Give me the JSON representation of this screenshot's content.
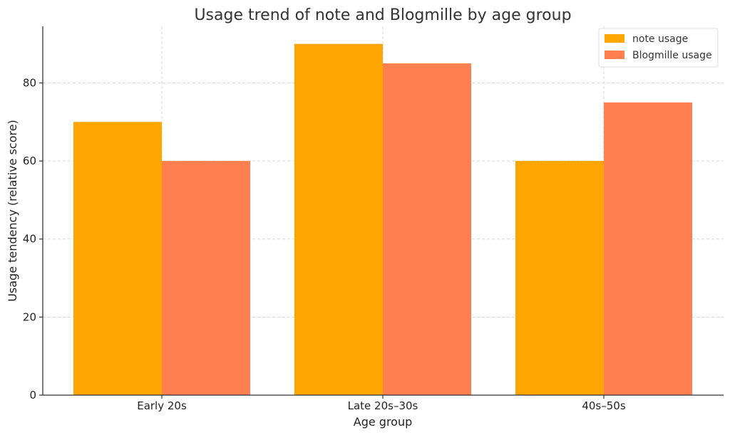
{
  "chart_data": {
    "type": "bar",
    "title": "Usage trend of note and Blogmille by age group",
    "xlabel": "Age group",
    "ylabel": "Usage tendency (relative score)",
    "categories": [
      "Early 20s",
      "Late 20s–30s",
      "40s–50s"
    ],
    "series": [
      {
        "name": "note usage",
        "values": [
          70,
          90,
          60
        ],
        "color": "#FFA500"
      },
      {
        "name": "Blogmille usage",
        "values": [
          60,
          85,
          75
        ],
        "color": "#FF7F50"
      }
    ],
    "ylim": [
      0,
      94.5
    ],
    "yticks": [
      0,
      20,
      40,
      60,
      80
    ],
    "grid": true,
    "legend": "top-right"
  }
}
